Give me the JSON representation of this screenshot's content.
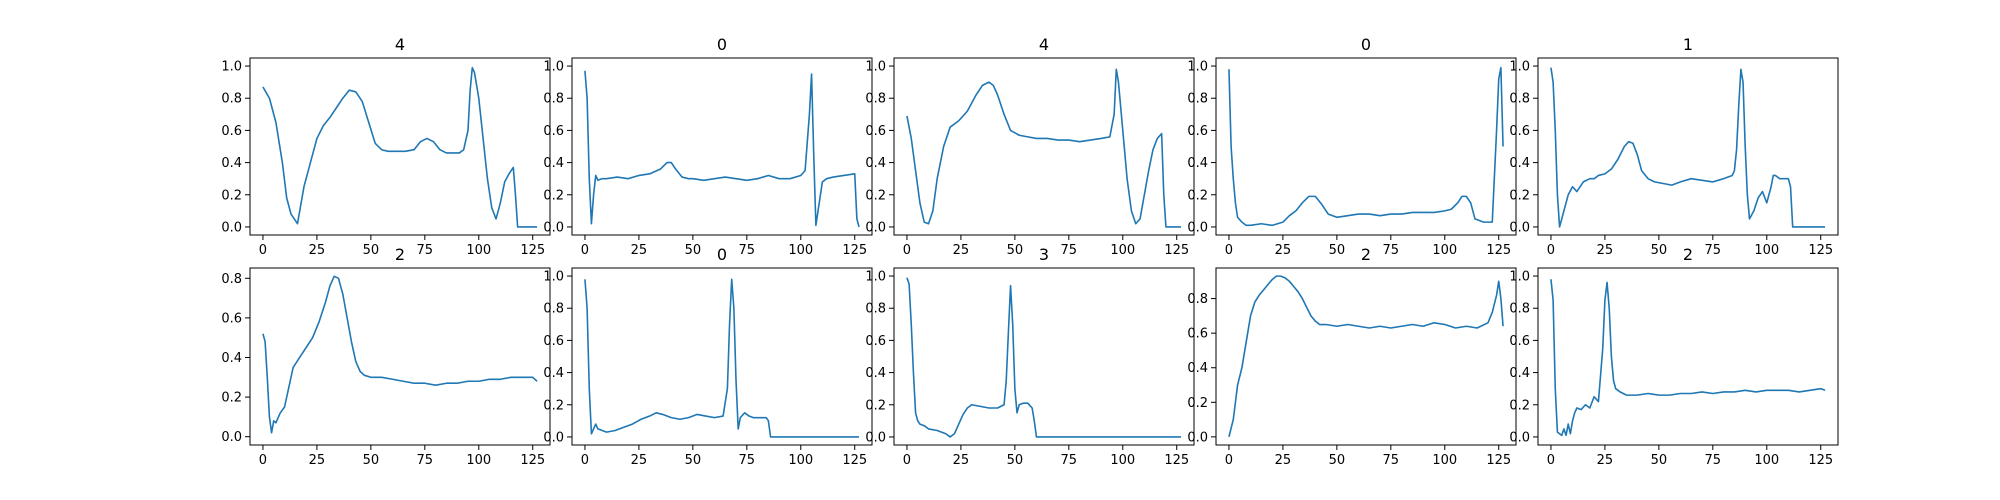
{
  "figure": {
    "background": "#ffffff",
    "line_color": "#1f77b4"
  },
  "chart_data": [
    {
      "type": "line",
      "title": "4",
      "xlim": [
        -6,
        133
      ],
      "ylim": [
        -0.05,
        1.05
      ],
      "xticks": [
        0,
        25,
        50,
        75,
        100,
        125
      ],
      "yticks": [
        0.0,
        0.2,
        0.4,
        0.6,
        0.8,
        1.0
      ],
      "grid": false,
      "legend": "none",
      "x": [
        0,
        3,
        6,
        9,
        11,
        13,
        16,
        19,
        22,
        25,
        28,
        31,
        34,
        37,
        40,
        43,
        46,
        49,
        52,
        55,
        58,
        62,
        66,
        70,
        73,
        76,
        79,
        82,
        85,
        88,
        91,
        93,
        95,
        96,
        97,
        98,
        100,
        102,
        104,
        106,
        108,
        110,
        112,
        114,
        116,
        117,
        118,
        120,
        125,
        127
      ],
      "y": [
        0.87,
        0.8,
        0.65,
        0.4,
        0.18,
        0.08,
        0.02,
        0.25,
        0.4,
        0.55,
        0.63,
        0.68,
        0.74,
        0.8,
        0.85,
        0.84,
        0.78,
        0.65,
        0.52,
        0.48,
        0.47,
        0.47,
        0.47,
        0.48,
        0.53,
        0.55,
        0.53,
        0.48,
        0.46,
        0.46,
        0.46,
        0.48,
        0.6,
        0.85,
        0.99,
        0.96,
        0.8,
        0.55,
        0.3,
        0.12,
        0.05,
        0.15,
        0.28,
        0.33,
        0.37,
        0.2,
        0.0,
        0.0,
        0.0,
        0.0
      ]
    },
    {
      "type": "line",
      "title": "0",
      "xlim": [
        -6,
        133
      ],
      "ylim": [
        -0.05,
        1.05
      ],
      "xticks": [
        0,
        25,
        50,
        75,
        100,
        125
      ],
      "yticks": [
        0.0,
        0.2,
        0.4,
        0.6,
        0.8,
        1.0
      ],
      "grid": false,
      "legend": "none",
      "x": [
        0,
        1,
        2,
        3,
        4,
        5,
        6,
        8,
        10,
        15,
        20,
        25,
        30,
        35,
        38,
        40,
        42,
        45,
        48,
        50,
        55,
        60,
        65,
        70,
        75,
        80,
        85,
        90,
        95,
        100,
        102,
        104,
        105,
        106,
        107,
        108,
        110,
        112,
        115,
        120,
        125,
        126,
        127
      ],
      "y": [
        0.97,
        0.8,
        0.3,
        0.02,
        0.2,
        0.32,
        0.29,
        0.3,
        0.3,
        0.31,
        0.3,
        0.32,
        0.33,
        0.36,
        0.4,
        0.4,
        0.36,
        0.31,
        0.3,
        0.3,
        0.29,
        0.3,
        0.31,
        0.3,
        0.29,
        0.3,
        0.32,
        0.3,
        0.3,
        0.32,
        0.35,
        0.7,
        0.95,
        0.45,
        0.01,
        0.1,
        0.28,
        0.3,
        0.31,
        0.32,
        0.33,
        0.05,
        0.0
      ]
    },
    {
      "type": "line",
      "title": "4",
      "xlim": [
        -6,
        133
      ],
      "ylim": [
        -0.05,
        1.05
      ],
      "xticks": [
        0,
        25,
        50,
        75,
        100,
        125
      ],
      "yticks": [
        0.0,
        0.2,
        0.4,
        0.6,
        0.8,
        1.0
      ],
      "grid": false,
      "legend": "none",
      "x": [
        0,
        2,
        4,
        6,
        8,
        10,
        12,
        14,
        17,
        20,
        24,
        28,
        32,
        35,
        38,
        40,
        42,
        45,
        48,
        52,
        56,
        60,
        65,
        70,
        75,
        80,
        85,
        90,
        94,
        96,
        97,
        98,
        100,
        102,
        104,
        106,
        108,
        110,
        112,
        114,
        116,
        118,
        119,
        120,
        125,
        127
      ],
      "y": [
        0.69,
        0.55,
        0.35,
        0.15,
        0.03,
        0.02,
        0.1,
        0.3,
        0.5,
        0.62,
        0.66,
        0.72,
        0.82,
        0.88,
        0.9,
        0.88,
        0.82,
        0.7,
        0.6,
        0.57,
        0.56,
        0.55,
        0.55,
        0.54,
        0.54,
        0.53,
        0.54,
        0.55,
        0.56,
        0.7,
        0.98,
        0.9,
        0.6,
        0.3,
        0.1,
        0.02,
        0.05,
        0.2,
        0.35,
        0.48,
        0.55,
        0.58,
        0.2,
        0.0,
        0.0,
        0.0
      ]
    },
    {
      "type": "line",
      "title": "0",
      "xlim": [
        -6,
        133
      ],
      "ylim": [
        -0.05,
        1.05
      ],
      "xticks": [
        0,
        25,
        50,
        75,
        100,
        125
      ],
      "yticks": [
        0.0,
        0.2,
        0.4,
        0.6,
        0.8,
        1.0
      ],
      "grid": false,
      "legend": "none",
      "x": [
        0,
        1,
        2,
        3,
        4,
        6,
        8,
        10,
        15,
        20,
        25,
        28,
        31,
        34,
        37,
        40,
        43,
        46,
        50,
        55,
        60,
        65,
        70,
        75,
        80,
        85,
        90,
        95,
        100,
        103,
        106,
        108,
        110,
        112,
        114,
        118,
        120,
        122,
        124,
        125,
        126,
        127
      ],
      "y": [
        0.98,
        0.5,
        0.3,
        0.15,
        0.06,
        0.03,
        0.01,
        0.01,
        0.02,
        0.01,
        0.03,
        0.07,
        0.1,
        0.15,
        0.19,
        0.19,
        0.14,
        0.08,
        0.06,
        0.07,
        0.08,
        0.08,
        0.07,
        0.08,
        0.08,
        0.09,
        0.09,
        0.09,
        0.1,
        0.11,
        0.15,
        0.19,
        0.19,
        0.15,
        0.05,
        0.03,
        0.03,
        0.03,
        0.6,
        0.92,
        0.99,
        0.5
      ]
    },
    {
      "type": "line",
      "title": "1",
      "xlim": [
        -6,
        133
      ],
      "ylim": [
        -0.05,
        1.05
      ],
      "xticks": [
        0,
        25,
        50,
        75,
        100,
        125
      ],
      "yticks": [
        0.0,
        0.2,
        0.4,
        0.6,
        0.8,
        1.0
      ],
      "grid": false,
      "legend": "none",
      "x": [
        0,
        1,
        2,
        3,
        4,
        5,
        6,
        7,
        8,
        10,
        12,
        15,
        18,
        20,
        22,
        25,
        28,
        31,
        34,
        36,
        38,
        40,
        42,
        45,
        48,
        52,
        56,
        60,
        65,
        70,
        75,
        80,
        84,
        85,
        86,
        87,
        88,
        89,
        90,
        91,
        92,
        94,
        96,
        98,
        100,
        102,
        103,
        104,
        106,
        108,
        110,
        111,
        112,
        120,
        125,
        127
      ],
      "y": [
        0.99,
        0.9,
        0.6,
        0.2,
        0.0,
        0.05,
        0.1,
        0.15,
        0.2,
        0.25,
        0.22,
        0.28,
        0.3,
        0.3,
        0.32,
        0.33,
        0.36,
        0.42,
        0.5,
        0.53,
        0.52,
        0.45,
        0.35,
        0.3,
        0.28,
        0.27,
        0.26,
        0.28,
        0.3,
        0.29,
        0.28,
        0.3,
        0.32,
        0.35,
        0.48,
        0.75,
        0.98,
        0.9,
        0.5,
        0.2,
        0.05,
        0.1,
        0.18,
        0.22,
        0.15,
        0.25,
        0.32,
        0.32,
        0.3,
        0.3,
        0.3,
        0.25,
        0.0,
        0.0,
        0.0,
        0.0
      ]
    },
    {
      "type": "line",
      "title": "2",
      "xlim": [
        -6,
        133
      ],
      "ylim": [
        -0.042,
        0.852
      ],
      "xticks": [
        0,
        25,
        50,
        75,
        100,
        125
      ],
      "yticks": [
        0.0,
        0.2,
        0.4,
        0.6,
        0.8
      ],
      "grid": false,
      "legend": "none",
      "x": [
        0,
        1,
        2,
        3,
        4,
        5,
        6,
        8,
        10,
        12,
        14,
        17,
        20,
        23,
        26,
        29,
        31,
        33,
        35,
        37,
        39,
        41,
        43,
        45,
        47,
        50,
        55,
        60,
        65,
        70,
        75,
        80,
        85,
        90,
        95,
        100,
        105,
        110,
        115,
        120,
        125,
        127
      ],
      "y": [
        0.52,
        0.48,
        0.3,
        0.1,
        0.02,
        0.08,
        0.07,
        0.12,
        0.15,
        0.25,
        0.35,
        0.4,
        0.45,
        0.5,
        0.58,
        0.68,
        0.76,
        0.81,
        0.8,
        0.72,
        0.6,
        0.48,
        0.38,
        0.33,
        0.31,
        0.3,
        0.3,
        0.29,
        0.28,
        0.27,
        0.27,
        0.26,
        0.27,
        0.27,
        0.28,
        0.28,
        0.29,
        0.29,
        0.3,
        0.3,
        0.3,
        0.28
      ]
    },
    {
      "type": "line",
      "title": "0",
      "xlim": [
        -6,
        133
      ],
      "ylim": [
        -0.05,
        1.05
      ],
      "xticks": [
        0,
        25,
        50,
        75,
        100,
        125
      ],
      "yticks": [
        0.0,
        0.2,
        0.4,
        0.6,
        0.8,
        1.0
      ],
      "grid": false,
      "legend": "none",
      "x": [
        0,
        1,
        2,
        3,
        4,
        5,
        6,
        8,
        10,
        14,
        18,
        22,
        26,
        30,
        33,
        36,
        40,
        44,
        48,
        52,
        56,
        60,
        64,
        66,
        67,
        68,
        69,
        70,
        71,
        72,
        74,
        76,
        78,
        80,
        82,
        84,
        85,
        86,
        90,
        100,
        110,
        120,
        125,
        127
      ],
      "y": [
        0.98,
        0.8,
        0.3,
        0.02,
        0.05,
        0.08,
        0.05,
        0.04,
        0.03,
        0.04,
        0.06,
        0.08,
        0.11,
        0.13,
        0.15,
        0.14,
        0.12,
        0.11,
        0.12,
        0.14,
        0.13,
        0.12,
        0.13,
        0.3,
        0.7,
        0.98,
        0.8,
        0.35,
        0.05,
        0.12,
        0.15,
        0.13,
        0.12,
        0.12,
        0.12,
        0.12,
        0.1,
        0.0,
        0.0,
        0.0,
        0.0,
        0.0,
        0.0,
        0.0
      ]
    },
    {
      "type": "line",
      "title": "3",
      "xlim": [
        -6,
        133
      ],
      "ylim": [
        -0.05,
        1.05
      ],
      "xticks": [
        0,
        25,
        50,
        75,
        100,
        125
      ],
      "yticks": [
        0.0,
        0.2,
        0.4,
        0.6,
        0.8,
        1.0
      ],
      "grid": false,
      "legend": "none",
      "x": [
        0,
        1,
        2,
        3,
        4,
        5,
        6,
        8,
        10,
        14,
        18,
        20,
        22,
        24,
        26,
        28,
        30,
        34,
        38,
        42,
        45,
        46,
        47,
        48,
        49,
        50,
        51,
        52,
        54,
        56,
        58,
        59,
        60,
        65,
        70,
        80,
        90,
        100,
        110,
        120,
        125,
        127
      ],
      "y": [
        0.99,
        0.95,
        0.7,
        0.4,
        0.15,
        0.1,
        0.08,
        0.07,
        0.05,
        0.04,
        0.02,
        0.0,
        0.02,
        0.08,
        0.14,
        0.18,
        0.2,
        0.19,
        0.18,
        0.18,
        0.2,
        0.35,
        0.65,
        0.94,
        0.7,
        0.3,
        0.15,
        0.2,
        0.21,
        0.21,
        0.18,
        0.1,
        0.0,
        0.0,
        0.0,
        0.0,
        0.0,
        0.0,
        0.0,
        0.0,
        0.0,
        0.0
      ]
    },
    {
      "type": "line",
      "title": "2",
      "xlim": [
        -6,
        133
      ],
      "ylim": [
        -0.047,
        0.977
      ],
      "xticks": [
        0,
        25,
        50,
        75,
        100,
        125
      ],
      "yticks": [
        0.0,
        0.2,
        0.4,
        0.6,
        0.8
      ],
      "grid": false,
      "legend": "none",
      "x": [
        0,
        2,
        4,
        6,
        8,
        10,
        12,
        14,
        16,
        18,
        20,
        22,
        24,
        26,
        28,
        30,
        32,
        34,
        36,
        38,
        40,
        42,
        45,
        50,
        55,
        60,
        65,
        70,
        75,
        80,
        85,
        90,
        95,
        100,
        105,
        110,
        115,
        120,
        122,
        124,
        125,
        126,
        127
      ],
      "y": [
        0.0,
        0.1,
        0.3,
        0.4,
        0.55,
        0.7,
        0.78,
        0.82,
        0.85,
        0.88,
        0.91,
        0.93,
        0.93,
        0.92,
        0.9,
        0.87,
        0.84,
        0.8,
        0.75,
        0.7,
        0.67,
        0.65,
        0.65,
        0.64,
        0.65,
        0.64,
        0.63,
        0.64,
        0.63,
        0.64,
        0.65,
        0.64,
        0.66,
        0.65,
        0.63,
        0.64,
        0.63,
        0.66,
        0.72,
        0.82,
        0.9,
        0.8,
        0.64
      ]
    },
    {
      "type": "line",
      "title": "2",
      "xlim": [
        -6,
        133
      ],
      "ylim": [
        -0.05,
        1.05
      ],
      "xticks": [
        0,
        25,
        50,
        75,
        100,
        125
      ],
      "yticks": [
        0.0,
        0.2,
        0.4,
        0.6,
        0.8,
        1.0
      ],
      "grid": false,
      "legend": "none",
      "x": [
        0,
        1,
        2,
        3,
        4,
        5,
        6,
        7,
        8,
        9,
        10,
        11,
        12,
        14,
        16,
        18,
        20,
        22,
        24,
        25,
        26,
        27,
        28,
        29,
        30,
        32,
        35,
        40,
        45,
        50,
        55,
        60,
        65,
        70,
        75,
        80,
        85,
        90,
        95,
        100,
        105,
        110,
        115,
        120,
        125,
        127
      ],
      "y": [
        0.98,
        0.85,
        0.3,
        0.03,
        0.02,
        0.01,
        0.05,
        0.01,
        0.08,
        0.02,
        0.1,
        0.15,
        0.18,
        0.17,
        0.2,
        0.18,
        0.25,
        0.22,
        0.55,
        0.85,
        0.96,
        0.8,
        0.5,
        0.35,
        0.3,
        0.28,
        0.26,
        0.26,
        0.27,
        0.26,
        0.26,
        0.27,
        0.27,
        0.28,
        0.27,
        0.28,
        0.28,
        0.29,
        0.28,
        0.29,
        0.29,
        0.29,
        0.28,
        0.29,
        0.3,
        0.29
      ]
    }
  ]
}
